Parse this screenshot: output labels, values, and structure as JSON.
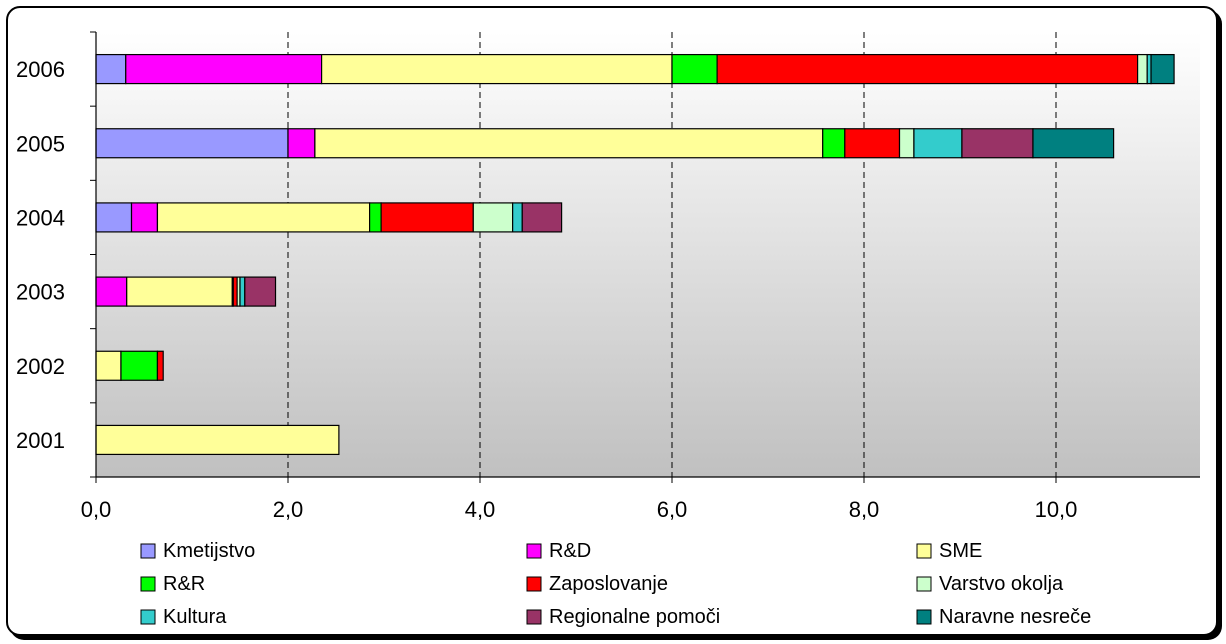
{
  "chart_data": {
    "type": "bar",
    "orientation": "horizontal",
    "stacked": true,
    "categories": [
      "2006",
      "2005",
      "2004",
      "2003",
      "2002",
      "2001"
    ],
    "xlim": [
      0,
      11.5
    ],
    "xticks": [
      "0,0",
      "2,0",
      "4,0",
      "6,0",
      "8,0",
      "10,0"
    ],
    "xtick_values": [
      0,
      2,
      4,
      6,
      8,
      10
    ],
    "grid": "vertical dashed",
    "legend_position": "bottom",
    "series": [
      {
        "name": "Kmetijstvo",
        "color": "#9999ff",
        "values": [
          0.31,
          2.0,
          0.37,
          0,
          0,
          0
        ]
      },
      {
        "name": "R&D",
        "color": "#ff00ff",
        "values": [
          2.04,
          0.28,
          0.27,
          0.32,
          0,
          0
        ]
      },
      {
        "name": "SME",
        "color": "#ffff99",
        "values": [
          3.65,
          5.29,
          2.21,
          1.1,
          0.26,
          2.53
        ]
      },
      {
        "name": "R&R",
        "color": "#00ff00",
        "values": [
          0.47,
          0.23,
          0.12,
          0.01,
          0.38,
          0
        ]
      },
      {
        "name": "Zaposlovanje",
        "color": "#ff0000",
        "values": [
          4.38,
          0.57,
          0.96,
          0.04,
          0.06,
          0
        ]
      },
      {
        "name": "Varstvo okolja",
        "color": "#ccffcc",
        "values": [
          0.1,
          0.15,
          0.41,
          0.03,
          0,
          0
        ]
      },
      {
        "name": "Kultura",
        "color": "#33cccc",
        "values": [
          0.04,
          0.5,
          0.1,
          0.05,
          0,
          0
        ]
      },
      {
        "name": "Regionalne pomoči",
        "color": "#993366",
        "values": [
          0,
          0.74,
          0.41,
          0.32,
          0,
          0
        ]
      },
      {
        "name": "Naravne nesreče",
        "color": "#008080",
        "values": [
          0.24,
          0.84,
          0,
          0,
          0,
          0
        ]
      }
    ]
  }
}
